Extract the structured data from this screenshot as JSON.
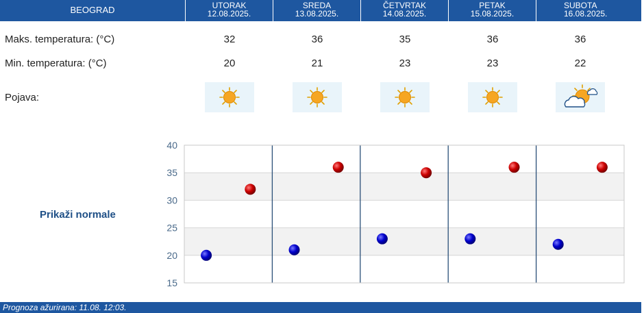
{
  "header": {
    "city": "BEOGRAD",
    "days": [
      {
        "name": "UTORAK",
        "date": "12.08.2025."
      },
      {
        "name": "SREDA",
        "date": "13.08.2025."
      },
      {
        "name": "ČETVRTAK",
        "date": "14.08.2025."
      },
      {
        "name": "PETAK",
        "date": "15.08.2025."
      },
      {
        "name": "SUBOTA",
        "date": "16.08.2025."
      }
    ]
  },
  "rows": {
    "max_label": "Maks. temperatura: (°C)",
    "min_label": "Min. temperatura: (°C)",
    "phenomena_label": "Pojava:",
    "max_values": [
      "32",
      "36",
      "35",
      "36",
      "36"
    ],
    "min_values": [
      "20",
      "21",
      "23",
      "23",
      "22"
    ],
    "icons": [
      "sun-icon",
      "sun-icon",
      "sun-icon",
      "sun-icon",
      "partly-cloudy-icon"
    ]
  },
  "normals_link": "Prikaži normale",
  "footer": "Prognoza ažurirana:  11.08. 12:03.",
  "colors": {
    "header_bg": "#1e57a0",
    "max_marker": "#cc0000",
    "min_marker": "#0000cc",
    "grid_band": "#f2f2f2"
  },
  "chart_data": {
    "type": "scatter",
    "categories": [
      "UTORAK",
      "SREDA",
      "ČETVRTAK",
      "PETAK",
      "SUBOTA"
    ],
    "series": [
      {
        "values": [
          32,
          36,
          35,
          36,
          36
        ]
      },
      {
        "values": [
          20,
          21,
          23,
          23,
          22
        ]
      }
    ],
    "ylim": [
      15,
      40
    ],
    "yticks": [
      "15",
      "20",
      "25",
      "30",
      "35",
      "40"
    ],
    "grid": true
  }
}
